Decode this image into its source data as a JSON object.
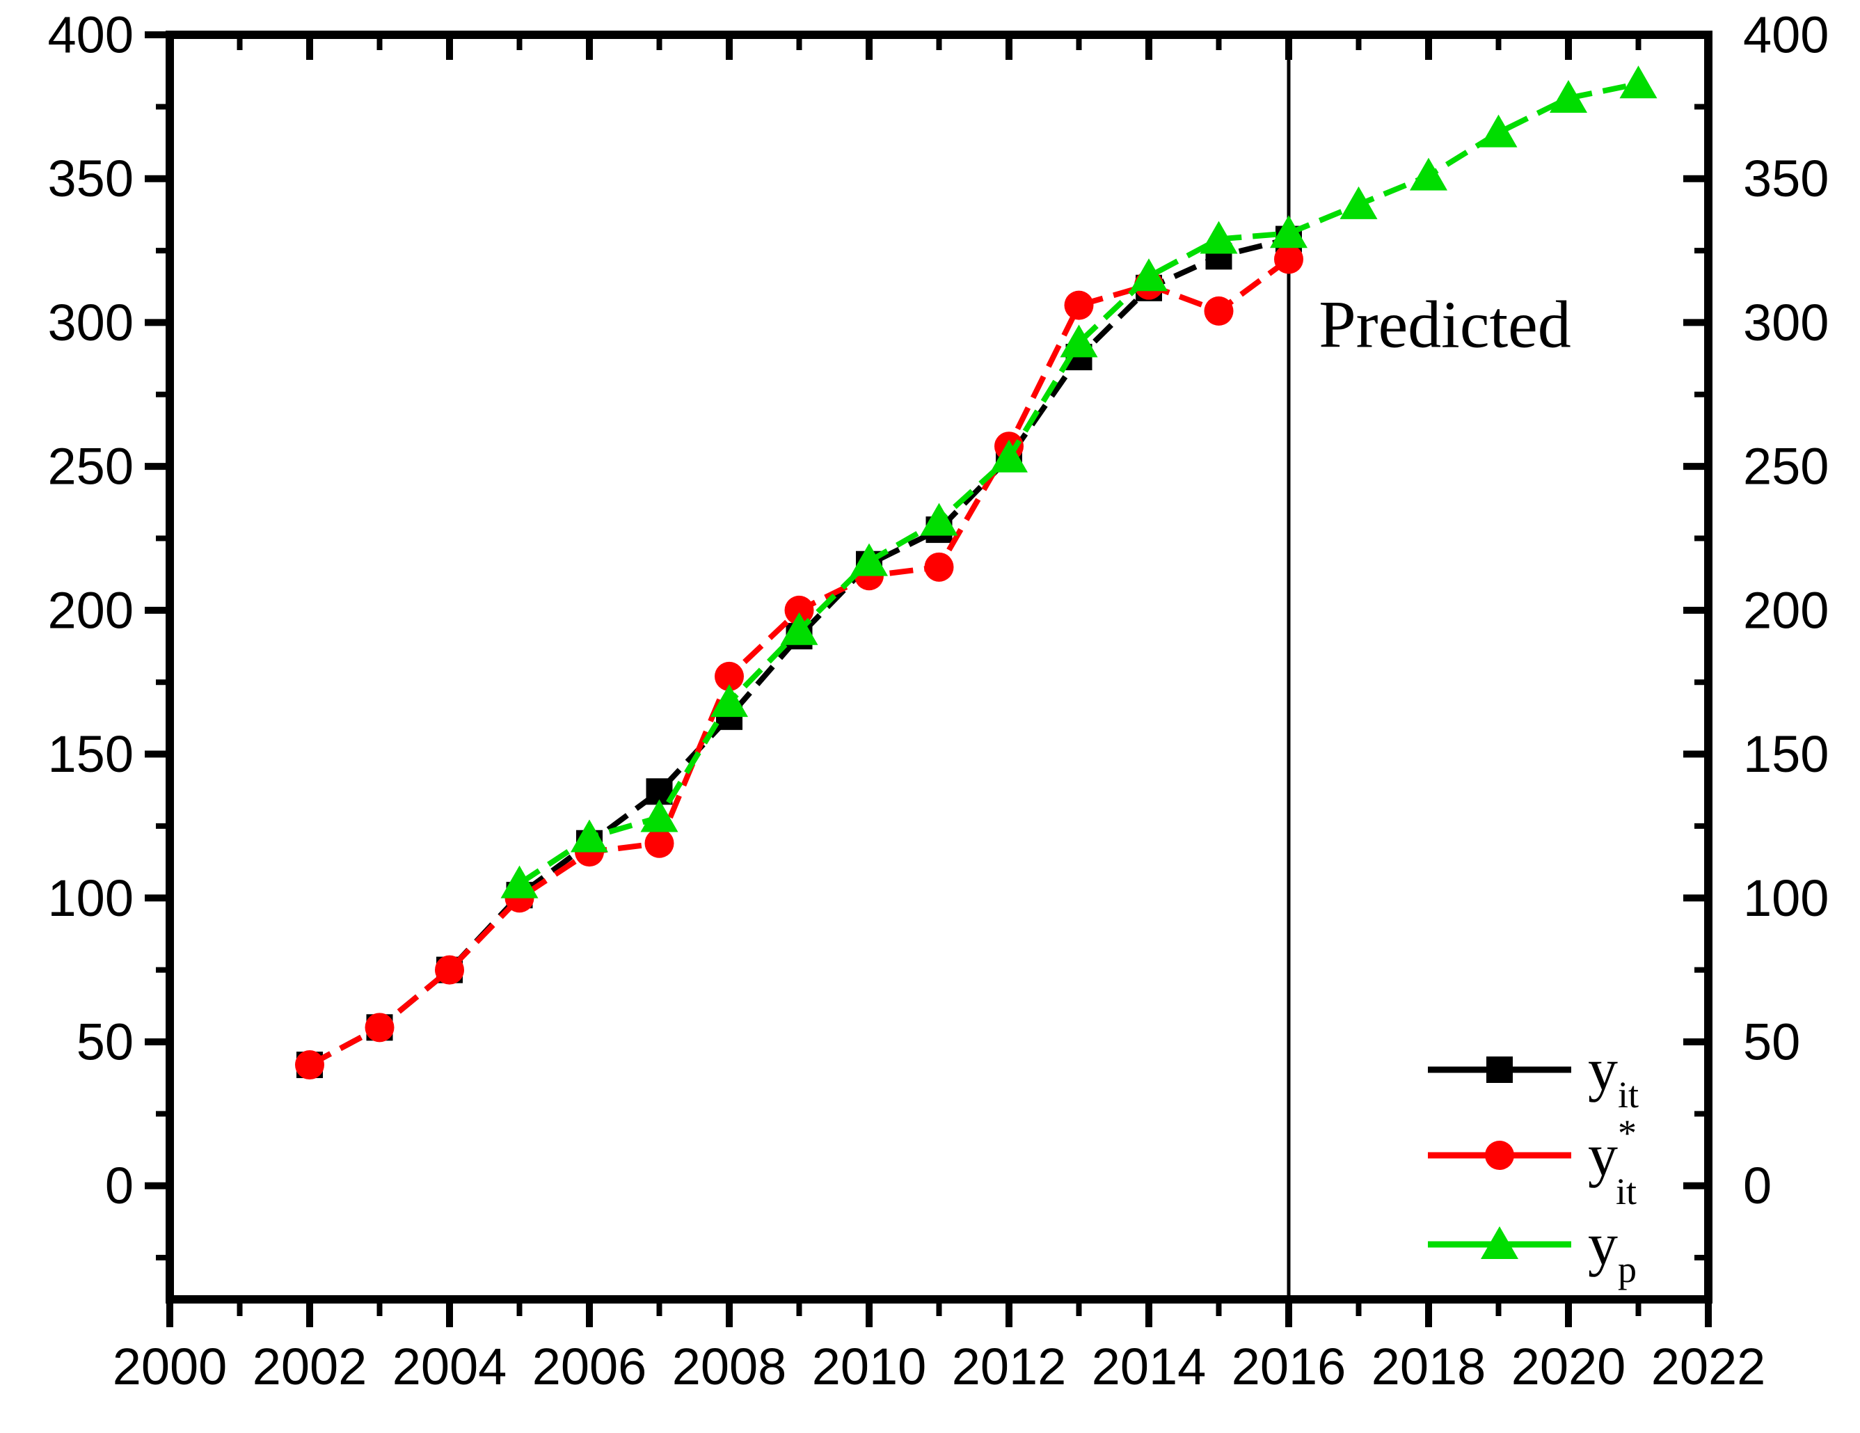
{
  "figure": {
    "background_color": "#ffffff",
    "frame_color": "#000000"
  },
  "chart_data": {
    "type": "line",
    "title": "",
    "xlabel": "",
    "ylabel": "",
    "grid": false,
    "xlim": [
      2000,
      2022
    ],
    "ylim": [
      -39.5,
      400
    ],
    "x_axis": {
      "major_step": 2,
      "minor_step": 1,
      "major_ticks": [
        2000,
        2002,
        2004,
        2006,
        2008,
        2010,
        2012,
        2014,
        2016,
        2018,
        2020,
        2022
      ],
      "minor_ticks": [
        2001,
        2003,
        2005,
        2007,
        2009,
        2011,
        2013,
        2015,
        2017,
        2019,
        2021
      ],
      "tick_labels": [
        "2000",
        "2002",
        "2004",
        "2006",
        "2008",
        "2010",
        "2012",
        "2014",
        "2016",
        "2018",
        "2020",
        "2022"
      ]
    },
    "y_axis": {
      "major_step": 50,
      "minor_step": 25,
      "major_ticks": [
        0,
        50,
        100,
        150,
        200,
        250,
        300,
        350,
        400
      ],
      "minor_ticks": [
        -25,
        25,
        75,
        125,
        175,
        225,
        275,
        325,
        375
      ],
      "tick_labels": [
        "0",
        "50",
        "100",
        "150",
        "200",
        "250",
        "300",
        "350",
        "400"
      ],
      "mirrored_right": true
    },
    "divider_line": {
      "x_year": 2016
    },
    "annotation": {
      "text": "Predicted",
      "x_year": 2016.43,
      "y_value": 291.5
    },
    "legend": {
      "position": "bottom-right"
    },
    "series": [
      {
        "name": "y_it",
        "label_main": "y",
        "label_sup": "",
        "label_sub": "it",
        "color": "#000000",
        "marker": "square",
        "years": [
          2002,
          2003,
          2004,
          2005,
          2006,
          2007,
          2008,
          2009,
          2010,
          2011,
          2012,
          2013,
          2014,
          2015,
          2016
        ],
        "values": [
          42,
          55,
          75,
          101,
          119,
          137,
          163,
          191,
          216,
          228,
          253,
          288,
          312,
          323,
          329
        ]
      },
      {
        "name": "y_it_star",
        "label_main": "y",
        "label_sup": "*",
        "label_sub": "it",
        "color": "#ff0000",
        "marker": "circle",
        "years": [
          2002,
          2003,
          2004,
          2005,
          2006,
          2007,
          2008,
          2009,
          2010,
          2011,
          2012,
          2013,
          2014,
          2015,
          2016
        ],
        "values": [
          42,
          55,
          75,
          100,
          116,
          119,
          177,
          200,
          212,
          215,
          257,
          306,
          313,
          304,
          322
        ]
      },
      {
        "name": "y_p",
        "label_main": "y",
        "label_sup": "",
        "label_sub": "p",
        "color": "#00dd00",
        "marker": "triangle",
        "years": [
          2005,
          2006,
          2007,
          2008,
          2009,
          2010,
          2011,
          2012,
          2013,
          2014,
          2015,
          2016,
          2017,
          2018,
          2019,
          2020,
          2021
        ],
        "values": [
          105,
          121,
          128,
          168,
          193,
          217,
          231,
          253,
          293,
          316,
          329,
          331,
          341,
          351,
          366,
          378,
          383
        ]
      }
    ]
  }
}
